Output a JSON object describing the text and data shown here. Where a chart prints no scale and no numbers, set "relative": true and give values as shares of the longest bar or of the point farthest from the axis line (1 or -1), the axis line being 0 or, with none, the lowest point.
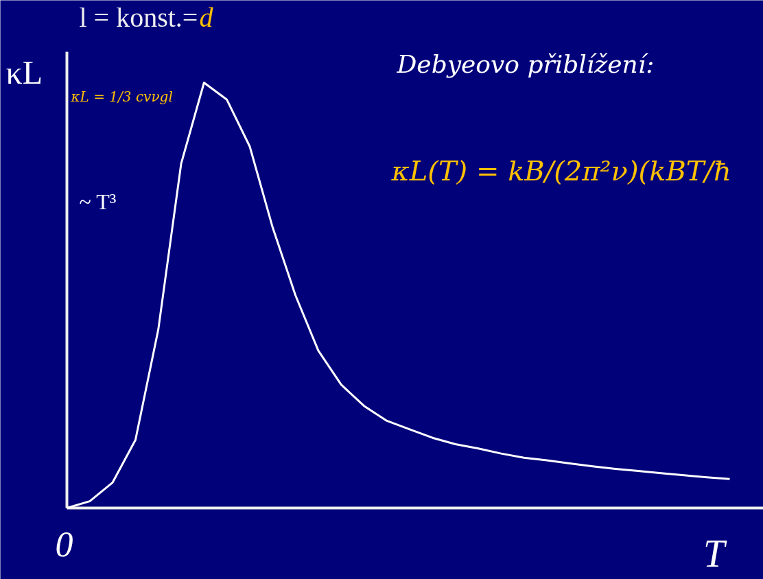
{
  "chart_data": {
    "type": "line",
    "relative": true,
    "xlabel": "T",
    "ylabel": "κL",
    "categories": [
      null,
      null,
      null,
      null,
      null,
      null,
      null,
      null,
      null,
      null,
      null,
      null,
      null,
      null,
      null,
      null,
      null,
      null,
      null,
      null,
      null,
      null,
      null,
      null,
      null,
      null,
      null,
      null,
      null,
      null
    ],
    "series": [
      {
        "color": "#ffffff",
        "values": [
          0,
          0.016,
          0.06,
          0.16,
          0.42,
          0.81,
          1,
          0.96,
          0.85,
          0.66,
          0.5,
          0.37,
          0.29,
          0.24,
          0.205,
          0.185,
          0.165,
          0.15,
          0.14,
          0.128,
          0.118,
          0.112,
          0.105,
          0.098,
          0.092,
          0.087,
          0.082,
          0.077,
          0.072,
          0.068
        ]
      }
    ],
    "annotations": [
      "l = konst.=",
      "d",
      "κL = 1/3 cvνgl",
      "~ T³",
      "Debyeovo přiblížení:",
      "κL(T) = kB/(2π²ν)(kBT/ħ",
      "0"
    ]
  }
}
